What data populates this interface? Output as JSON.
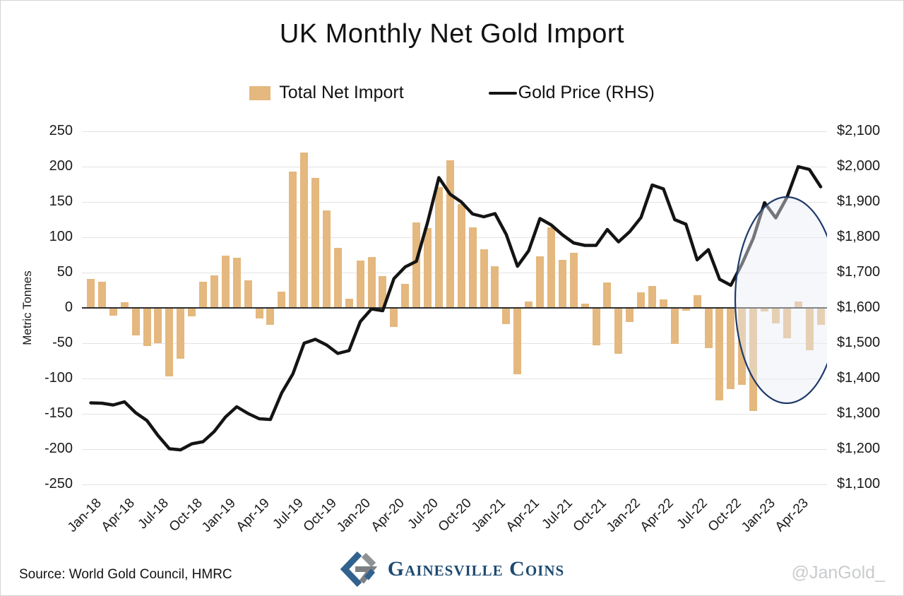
{
  "title": "UK Monthly Net Gold Import",
  "legend": [
    {
      "label": "Total Net Import",
      "type": "bar",
      "color": "#e4b87e"
    },
    {
      "label": "Gold Price (RHS)",
      "type": "line",
      "color": "#141414"
    }
  ],
  "axes": {
    "left_title": "Metric Tonnes",
    "left_ticks": [
      "250",
      "200",
      "150",
      "100",
      "50",
      "0",
      "-50",
      "-100",
      "-150",
      "-200",
      "-250"
    ],
    "right_ticks": [
      "$2,100",
      "$2,000",
      "$1,900",
      "$1,800",
      "$1,700",
      "$1,600",
      "$1,500",
      "$1,400",
      "$1,300",
      "$1,200",
      "$1,100"
    ]
  },
  "chart_data": {
    "type": "bar",
    "subtype": "combo-bar-line",
    "title": "UK Monthly Net Gold Import",
    "xlabel": "",
    "ylabel_left": "Metric Tonnes",
    "ylim_left": [
      -250,
      250
    ],
    "ylim_right": [
      1100,
      2100
    ],
    "grid": true,
    "legend_position": "top-center",
    "x": [
      "Jan-18",
      "Feb-18",
      "Mar-18",
      "Apr-18",
      "May-18",
      "Jun-18",
      "Jul-18",
      "Aug-18",
      "Sep-18",
      "Oct-18",
      "Nov-18",
      "Dec-18",
      "Jan-19",
      "Feb-19",
      "Mar-19",
      "Apr-19",
      "May-19",
      "Jun-19",
      "Jul-19",
      "Aug-19",
      "Sep-19",
      "Oct-19",
      "Nov-19",
      "Dec-19",
      "Jan-20",
      "Feb-20",
      "Mar-20",
      "Apr-20",
      "May-20",
      "Jun-20",
      "Jul-20",
      "Aug-20",
      "Sep-20",
      "Oct-20",
      "Nov-20",
      "Dec-20",
      "Jan-21",
      "Feb-21",
      "Mar-21",
      "Apr-21",
      "May-21",
      "Jun-21",
      "Jul-21",
      "Aug-21",
      "Sep-21",
      "Oct-21",
      "Nov-21",
      "Dec-21",
      "Jan-22",
      "Feb-22",
      "Mar-22",
      "Apr-22",
      "May-22",
      "Jun-22",
      "Jul-22",
      "Aug-22",
      "Sep-22",
      "Oct-22",
      "Nov-22",
      "Dec-22",
      "Jan-23",
      "Feb-23",
      "Mar-23",
      "Apr-23",
      "May-23",
      "Jun-23"
    ],
    "x_tick_every": 3,
    "series": [
      {
        "name": "Total Net Import",
        "type": "bar",
        "axis": "left",
        "unit": "metric tonnes",
        "values": [
          41,
          37,
          -10,
          8,
          -38,
          -53,
          -49,
          -96,
          -71,
          -11,
          37,
          46,
          74,
          71,
          39,
          -14,
          -23,
          23,
          193,
          220,
          184,
          138,
          85,
          13,
          67,
          72,
          45,
          -26,
          34,
          121,
          113,
          171,
          209,
          147,
          114,
          83,
          59,
          -22,
          -93,
          9,
          73,
          114,
          68,
          78,
          6,
          -52,
          36,
          -64,
          -19,
          22,
          31,
          12,
          -50,
          -3,
          18,
          -56,
          -130,
          -114,
          -108,
          -145,
          -4,
          -21,
          -42,
          9,
          -59,
          -23
        ]
      },
      {
        "name": "Gold Price (RHS)",
        "type": "line",
        "axis": "right",
        "unit": "USD/oz",
        "values": [
          1331,
          1330,
          1325,
          1334,
          1303,
          1281,
          1238,
          1201,
          1198,
          1215,
          1221,
          1250,
          1291,
          1320,
          1301,
          1286,
          1284,
          1359,
          1413,
          1500,
          1511,
          1495,
          1471,
          1479,
          1561,
          1597,
          1592,
          1683,
          1716,
          1732,
          1843,
          1969,
          1922,
          1900,
          1866,
          1858,
          1867,
          1808,
          1718,
          1762,
          1853,
          1835,
          1807,
          1784,
          1777,
          1777,
          1822,
          1787,
          1816,
          1856,
          1948,
          1937,
          1850,
          1837,
          1736,
          1765,
          1681,
          1664,
          1725,
          1797,
          1898,
          1855,
          1913,
          2000,
          1992,
          1943
        ]
      }
    ],
    "annotations": [
      {
        "type": "ellipse-highlight",
        "months_from": "Oct-22",
        "months_to": "Jun-23",
        "fill": "#e9eef7",
        "stroke": "#1f3a68"
      }
    ]
  },
  "footer": {
    "source": "Source: World Gold Council, HMRC",
    "brand": "Gainesville Coins",
    "handle": "@JanGold_"
  }
}
